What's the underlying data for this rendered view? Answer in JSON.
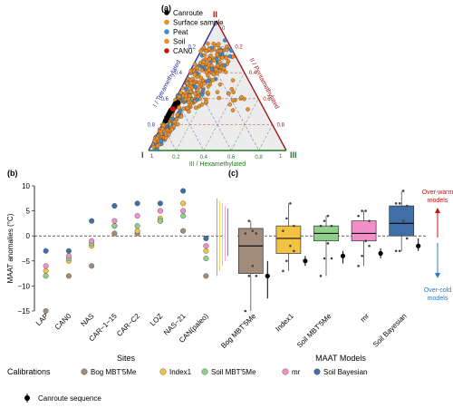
{
  "panel_labels": {
    "a": "(a)",
    "b": "(b)",
    "c": "(c)"
  },
  "colors": {
    "canroute": "#000000",
    "surface": "#e8902a",
    "peat": "#3a8ed6",
    "soil": "#f08a2c",
    "can0": "#cc1111",
    "axis_I": "#2f2fa0",
    "axis_II": "#a01818",
    "axis_III": "#1e7a1e",
    "bog": "#a08c78",
    "index1": "#f2c343",
    "soilmbt": "#8fd08a",
    "mr": "#f28ec8",
    "bayes": "#3f6fa6",
    "overwarm": "#cc1111",
    "overcold": "#2b78c8"
  },
  "chart_data": [
    {
      "type": "scatter",
      "subtype": "ternary",
      "vertex_labels": [
        "I",
        "II",
        "III"
      ],
      "axis_labels": [
        "I / Tetramethylated",
        "II / Pentamethylated",
        "III / Hexamethylated"
      ],
      "ticks": [
        "0",
        "0.2",
        "0.4",
        "0.6",
        "0.8",
        "1"
      ],
      "legend": [
        "Canroute",
        "Surface sample",
        "Peat",
        "Soil",
        "CAN0"
      ],
      "legend_position": "top-left",
      "series_points": [
        {
          "name": "Canroute",
          "points": [
            [
              0.72,
              0.27,
              0.01
            ],
            [
              0.7,
              0.29,
              0.01
            ],
            [
              0.68,
              0.31,
              0.01
            ],
            [
              0.66,
              0.32,
              0.02
            ],
            [
              0.64,
              0.34,
              0.02
            ],
            [
              0.62,
              0.36,
              0.02
            ],
            [
              0.74,
              0.25,
              0.01
            ],
            [
              0.69,
              0.3,
              0.01
            ],
            [
              0.67,
              0.31,
              0.02
            ],
            [
              0.65,
              0.33,
              0.02
            ],
            [
              0.63,
              0.35,
              0.02
            ],
            [
              0.71,
              0.28,
              0.01
            ],
            [
              0.6,
              0.37,
              0.03
            ],
            [
              0.76,
              0.23,
              0.01
            ]
          ]
        },
        {
          "name": "CAN0",
          "points": [
            [
              0.66,
              0.32,
              0.02
            ]
          ]
        }
      ]
    },
    {
      "type": "scatter",
      "xlabel": "Sites",
      "ylabel": "MAAT anomalies (°C)",
      "categories": [
        "LAP",
        "CAN0",
        "NAS",
        "CAR−1−15",
        "CAR−C2",
        "LOZ",
        "NAS−21",
        "CAN(paleo)"
      ],
      "ylim": [
        -15,
        10
      ],
      "yticks": [
        -15,
        -10,
        -5,
        0,
        5,
        10
      ],
      "series": [
        {
          "name": "Bog MBT'5Me",
          "values": [
            -15.0,
            -8.0,
            -6.0,
            0.5,
            0.5,
            3.0,
            1.0,
            -8.0
          ]
        },
        {
          "name": "Index1",
          "values": [
            -7.0,
            -5.0,
            -2.0,
            2.0,
            1.0,
            3.5,
            6.5,
            -3.0
          ]
        },
        {
          "name": "Soil MBT'5Me",
          "values": [
            -8.0,
            -4.5,
            -1.5,
            2.0,
            2.0,
            3.0,
            4.0,
            -4.5
          ]
        },
        {
          "name": "mr",
          "values": [
            -6.0,
            -4.0,
            -1.0,
            3.0,
            4.0,
            5.0,
            5.0,
            -2.0
          ]
        },
        {
          "name": "Soil Bayesian",
          "values": [
            -3.0,
            -3.0,
            3.0,
            6.0,
            6.5,
            6.5,
            9.0,
            -0.5
          ]
        }
      ]
    },
    {
      "type": "box",
      "xlabel": "MAAT Models",
      "categories": [
        "Bog MBT'5Me",
        "Index1",
        "Soil MBT'5Me",
        "mr",
        "Soil Bayesian"
      ],
      "ylim": [
        -15,
        10
      ],
      "boxes": [
        {
          "name": "Bog MBT'5Me",
          "min": -15.0,
          "q1": -7.5,
          "median": -2.0,
          "q3": 1.5,
          "max": 3.0
        },
        {
          "name": "Index1",
          "min": -7.0,
          "q1": -3.5,
          "median": -0.5,
          "q3": 2.0,
          "max": 6.5
        },
        {
          "name": "Soil MBT'5Me",
          "min": -8.0,
          "q1": -1.0,
          "median": 0.5,
          "q3": 2.0,
          "max": 4.0
        },
        {
          "name": "mr",
          "min": -6.0,
          "q1": -1.0,
          "median": 0.5,
          "q3": 3.0,
          "max": 5.0
        },
        {
          "name": "Soil Bayesian",
          "min": -3.0,
          "q1": 0.0,
          "median": 2.5,
          "q3": 6.0,
          "max": 9.0
        }
      ],
      "canroute_sequence": [
        {
          "mean": -8.0,
          "low": -12.5,
          "high": -5.0
        },
        {
          "mean": -5.0,
          "low": -6.0,
          "high": -4.0
        },
        {
          "mean": -4.0,
          "low": -5.5,
          "high": -3.0
        },
        {
          "mean": -3.5,
          "low": -4.5,
          "high": -2.5
        },
        {
          "mean": -2.0,
          "low": -3.0,
          "high": -0.5
        }
      ],
      "annotations": {
        "over_warm": "Over-warm\nmodels",
        "over_cold": "Over-cold\nmodels"
      }
    }
  ],
  "legend_bottom": {
    "title": "Calibrations",
    "items": [
      "Bog MBT'5Me",
      "Index1",
      "Soil MBT'5Me",
      "mr",
      "Soil Bayesian"
    ],
    "sequence_label": "Canroute sequence"
  }
}
